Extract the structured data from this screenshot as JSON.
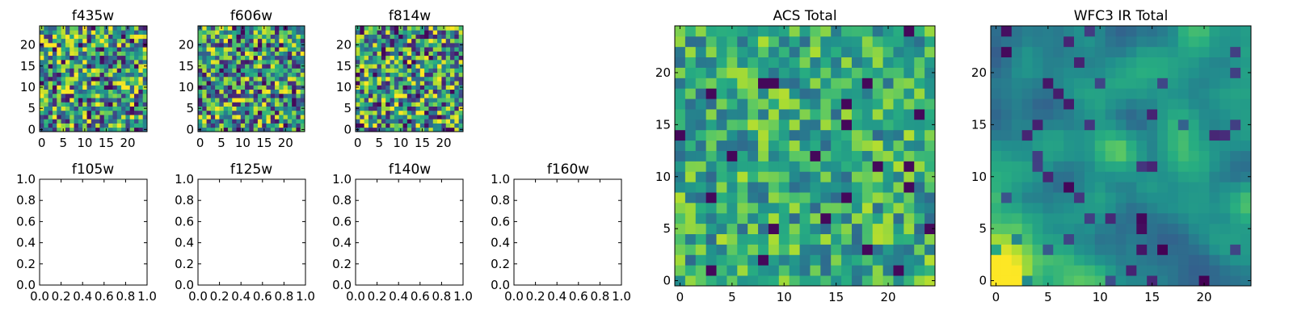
{
  "figure": {
    "background": "#ffffff",
    "colormap": "viridis"
  },
  "chart_data": [
    {
      "type": "heatmap",
      "title": "f435w",
      "grid_size": 25,
      "xlim": [
        -0.5,
        24.5
      ],
      "ylim": [
        -0.5,
        24.5
      ],
      "xticks": [
        "0",
        "5",
        "10",
        "15",
        "20"
      ],
      "yticks": [
        "0",
        "5",
        "10",
        "15",
        "20"
      ],
      "texture": "noise",
      "seed": 11,
      "spread": 0.9
    },
    {
      "type": "heatmap",
      "title": "f606w",
      "grid_size": 25,
      "xlim": [
        -0.5,
        24.5
      ],
      "ylim": [
        -0.5,
        24.5
      ],
      "xticks": [
        "0",
        "5",
        "10",
        "15",
        "20"
      ],
      "yticks": [
        "0",
        "5",
        "10",
        "15",
        "20"
      ],
      "texture": "noise",
      "seed": 23,
      "spread": 0.9
    },
    {
      "type": "heatmap",
      "title": "f814w",
      "grid_size": 25,
      "xlim": [
        -0.5,
        24.5
      ],
      "ylim": [
        -0.5,
        24.5
      ],
      "xticks": [
        "0",
        "5",
        "10",
        "15",
        "20"
      ],
      "yticks": [
        "0",
        "5",
        "10",
        "15",
        "20"
      ],
      "texture": "noise",
      "seed": 37,
      "spread": 0.9
    },
    {
      "type": "heatmap",
      "title": "f105w",
      "empty": true,
      "xlim": [
        0,
        1
      ],
      "ylim": [
        0,
        1
      ],
      "xticks": [
        "0.0",
        "0.2",
        "0.4",
        "0.6",
        "0.8",
        "1.0"
      ],
      "yticks": [
        "0.0",
        "0.2",
        "0.4",
        "0.6",
        "0.8",
        "1.0"
      ]
    },
    {
      "type": "heatmap",
      "title": "f125w",
      "empty": true,
      "xlim": [
        0,
        1
      ],
      "ylim": [
        0,
        1
      ],
      "xticks": [
        "0.0",
        "0.2",
        "0.4",
        "0.6",
        "0.8",
        "1.0"
      ],
      "yticks": [
        "0.0",
        "0.2",
        "0.4",
        "0.6",
        "0.8",
        "1.0"
      ]
    },
    {
      "type": "heatmap",
      "title": "f140w",
      "empty": true,
      "xlim": [
        0,
        1
      ],
      "ylim": [
        0,
        1
      ],
      "xticks": [
        "0.0",
        "0.2",
        "0.4",
        "0.6",
        "0.8",
        "1.0"
      ],
      "yticks": [
        "0.0",
        "0.2",
        "0.4",
        "0.6",
        "0.8",
        "1.0"
      ]
    },
    {
      "type": "heatmap",
      "title": "f160w",
      "empty": true,
      "xlim": [
        0,
        1
      ],
      "ylim": [
        0,
        1
      ],
      "xticks": [
        "0.0",
        "0.2",
        "0.4",
        "0.6",
        "0.8",
        "1.0"
      ],
      "yticks": [
        "0.0",
        "0.2",
        "0.4",
        "0.6",
        "0.8",
        "1.0"
      ]
    },
    {
      "type": "heatmap",
      "title": "ACS Total",
      "grid_size": 25,
      "xlim": [
        -0.5,
        24.5
      ],
      "ylim": [
        -0.5,
        24.5
      ],
      "xticks": [
        "0",
        "5",
        "10",
        "15",
        "20"
      ],
      "yticks": [
        "0",
        "5",
        "10",
        "15",
        "20"
      ],
      "texture": "noise-bright",
      "seed": 51,
      "spread": 0.55
    },
    {
      "type": "heatmap",
      "title": "WFC3 IR Total",
      "grid_size": 25,
      "xlim": [
        -0.5,
        24.5
      ],
      "ylim": [
        -0.5,
        24.5
      ],
      "xticks": [
        "0",
        "5",
        "10",
        "15",
        "20"
      ],
      "yticks": [
        "0",
        "5",
        "10",
        "15",
        "20"
      ],
      "texture": "smooth",
      "seed": 73,
      "spread": 0.35
    }
  ]
}
